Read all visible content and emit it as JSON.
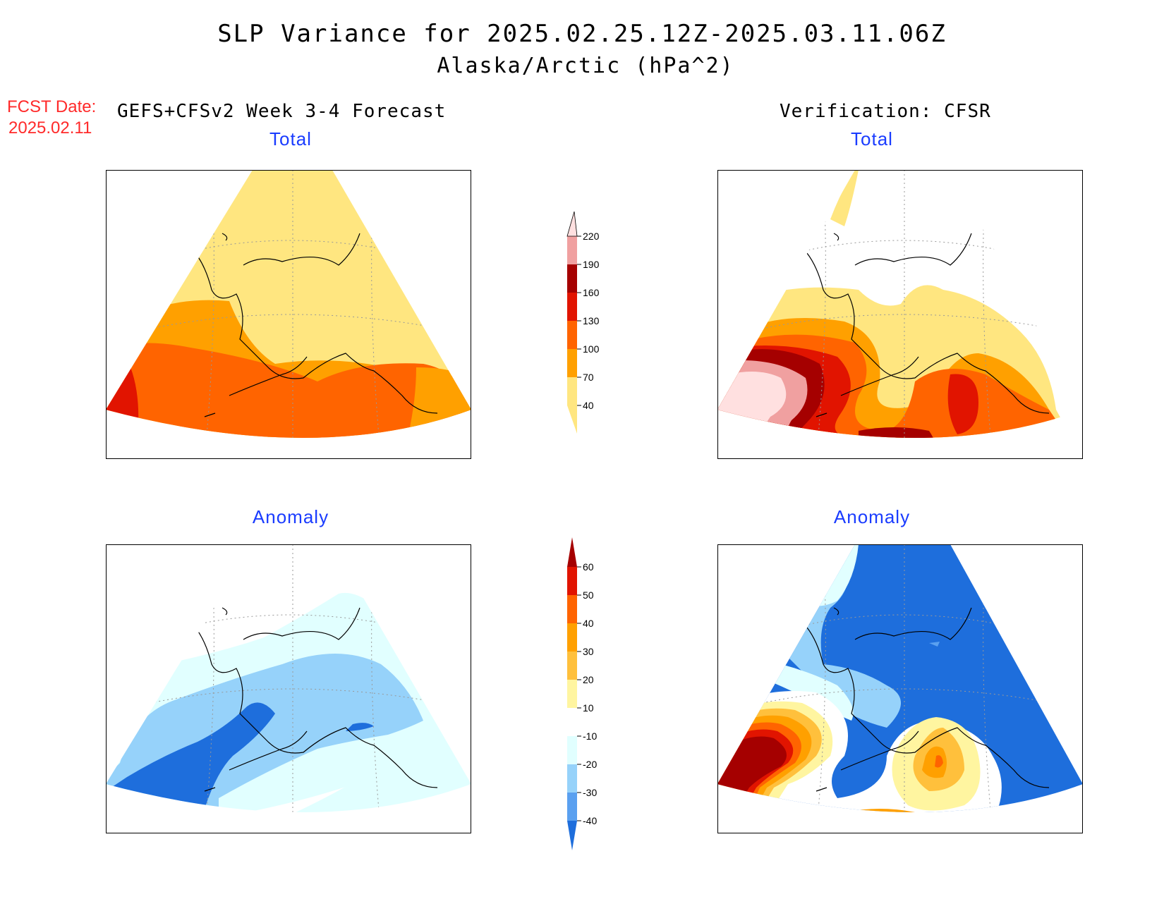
{
  "title": "SLP Variance for 2025.02.25.12Z-2025.03.11.06Z",
  "subtitle": "Alaska/Arctic (hPa^2)",
  "forecast_date_label": "FCST Date:",
  "forecast_date": "2025.02.11",
  "left_column_title": "GEFS+CFSv2 Week 3-4 Forecast",
  "right_column_title": "Verification: CFSR",
  "panels": {
    "forecast_total": "Total",
    "verification_total": "Total",
    "forecast_anomaly": "Anomaly",
    "verification_anomaly": "Anomaly"
  },
  "total_colorbar": {
    "labels": [
      "40",
      "70",
      "100",
      "130",
      "160",
      "190",
      "220"
    ],
    "colors": [
      "#ffe680",
      "#ffa000",
      "#ff6400",
      "#e11400",
      "#a50000",
      "#f0a0a0",
      "#ffe0e0"
    ]
  },
  "anomaly_colorbar": {
    "labels": [
      "-40",
      "-30",
      "-20",
      "-10",
      "10",
      "20",
      "30",
      "40",
      "50",
      "60"
    ],
    "colors": [
      "#1e6edc",
      "#5aa0f0",
      "#96d2fa",
      "#e1ffff",
      "#ffffff",
      "#fff5a0",
      "#ffc03c",
      "#ffa000",
      "#ff6400",
      "#e11400",
      "#a50000"
    ]
  }
}
